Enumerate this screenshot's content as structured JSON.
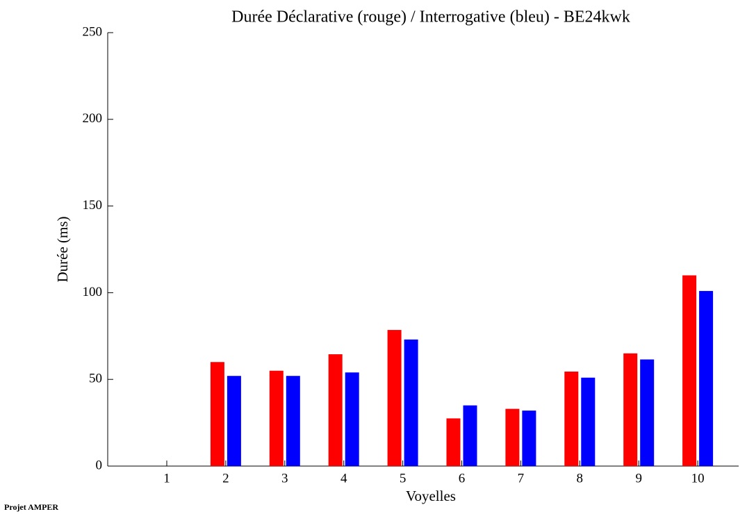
{
  "chart_data": {
    "type": "bar",
    "title": "Durée Déclarative (rouge) / Interrogative (bleu) - BE24kwk",
    "x_label": "Voyelles",
    "y_label": "Durée (ms)",
    "footer": "Projet AMPER",
    "categories": [
      "1",
      "2",
      "3",
      "4",
      "5",
      "6",
      "7",
      "8",
      "9",
      "10"
    ],
    "series": [
      {
        "color": "#ff0000",
        "values": [
          null,
          60,
          55,
          64.5,
          78.5,
          27.5,
          33,
          54.5,
          65,
          110
        ]
      },
      {
        "color": "#0000ff",
        "values": [
          null,
          52,
          52,
          54,
          73,
          35,
          32,
          51,
          61.5,
          101
        ]
      }
    ],
    "ylim": [
      0,
      250
    ],
    "yticks": [
      0,
      50,
      100,
      150,
      200,
      250
    ],
    "grid": false
  }
}
